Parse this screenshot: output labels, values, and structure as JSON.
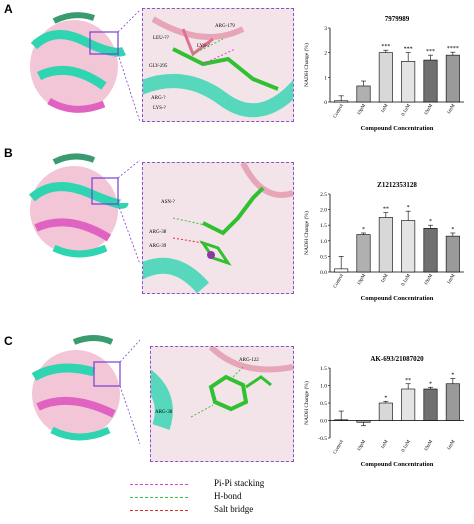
{
  "panels": [
    {
      "letter": "A",
      "residues": [
        "ARG-179",
        "LEU-??",
        "GLY-295",
        "LYS-?",
        "ARG-?",
        "LYS-?"
      ],
      "chart": {
        "title": "7979989",
        "xlabel": "Compound Concentration",
        "ylabel": "NADH Change (%)",
        "ylim": [
          0,
          3
        ],
        "yticks": [
          "0",
          "1",
          "2",
          "3"
        ]
      }
    },
    {
      "letter": "B",
      "residues": [
        "ASN-?",
        "ARG-38",
        "ARG-39"
      ],
      "chart": {
        "title": "Z1212353128",
        "xlabel": "Compound Concentration",
        "ylabel": "NADH Change (%)",
        "ylim": [
          0,
          2.5
        ],
        "yticks": [
          "0.0",
          "0.5",
          "1.0",
          "1.5",
          "2.0",
          "2.5"
        ]
      }
    },
    {
      "letter": "C",
      "residues": [
        "ARG-122",
        "ARG-38"
      ],
      "chart": {
        "title": "AK-693/21087020",
        "xlabel": "Compound Concentration",
        "ylabel": "NADH Change (%)",
        "ylim": [
          -0.5,
          1.5
        ],
        "yticks": [
          "-0.5",
          "0.0",
          "0.5",
          "1.0",
          "1.5"
        ]
      }
    }
  ],
  "legend": [
    {
      "label": "Pi-Pi stacking",
      "color": "#e040d0"
    },
    {
      "label": "H-bond",
      "color": "#40c040"
    },
    {
      "label": "Salt bridge",
      "color": "#e03030"
    }
  ],
  "chart_data": [
    {
      "type": "bar",
      "title": "7979989",
      "xlabel": "Compound Concentration",
      "ylabel": "NADH Change (%)",
      "ylim": [
        0,
        3
      ],
      "categories": [
        "Control",
        "10pM",
        "1nM",
        "0.1uM",
        "10uM",
        "1mM"
      ],
      "values": [
        0.05,
        0.65,
        2.0,
        1.65,
        1.7,
        1.9
      ],
      "errors": [
        0.2,
        0.2,
        0.1,
        0.35,
        0.2,
        0.12
      ],
      "sig": [
        "",
        "",
        "***",
        "***",
        "***",
        "****"
      ],
      "colors": [
        "#ffffff",
        "#b0b0b0",
        "#d8d8d8",
        "#e4e4e4",
        "#707070",
        "#9a9a9a"
      ]
    },
    {
      "type": "bar",
      "title": "Z1212353128",
      "xlabel": "Compound Concentration",
      "ylabel": "NADH Change (%)",
      "ylim": [
        0,
        2.5
      ],
      "categories": [
        "Control",
        "10pM",
        "1nM",
        "0.1uM",
        "10uM",
        "1mM"
      ],
      "values": [
        0.1,
        1.2,
        1.75,
        1.65,
        1.4,
        1.15
      ],
      "errors": [
        0.4,
        0.05,
        0.15,
        0.3,
        0.1,
        0.1
      ],
      "sig": [
        "",
        "*",
        "**",
        "*",
        "*",
        "*"
      ],
      "colors": [
        "#ffffff",
        "#b0b0b0",
        "#d8d8d8",
        "#e4e4e4",
        "#707070",
        "#9a9a9a"
      ]
    },
    {
      "type": "bar",
      "title": "AK-693/21087020",
      "xlabel": "Compound Concentration",
      "ylabel": "NADH Change (%)",
      "ylim": [
        -0.5,
        1.5
      ],
      "categories": [
        "Control",
        "10pM",
        "1nM",
        "0.1uM",
        "10uM",
        "1mM"
      ],
      "values": [
        0.02,
        -0.05,
        0.5,
        0.9,
        0.9,
        1.05
      ],
      "errors": [
        0.25,
        0.1,
        0.05,
        0.15,
        0.05,
        0.15
      ],
      "sig": [
        "",
        "",
        "*",
        "**",
        "*",
        "*"
      ],
      "colors": [
        "#ffffff",
        "#b0b0b0",
        "#d8d8d8",
        "#e4e4e4",
        "#707070",
        "#9a9a9a"
      ]
    }
  ]
}
